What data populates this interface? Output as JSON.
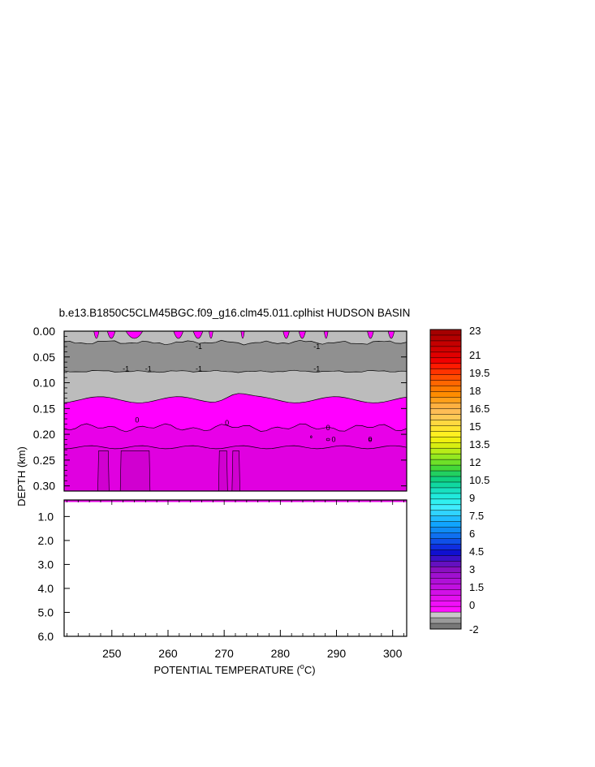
{
  "chart_data": {
    "type": "heatmap",
    "title": "b.e13.B1850C5CLM45BGC.f09_g16.clm45.011.cplhist HUDSON BASIN",
    "ylabel": "DEPTH (km)",
    "xlabel_main": "POTENTIAL TEMPERATURE (",
    "xlabel_sup": "o",
    "xlabel_unit": "C)",
    "x_ticks": [
      "250",
      "260",
      "270",
      "280",
      "290",
      "300"
    ],
    "x_tick_values": [
      250,
      260,
      270,
      280,
      290,
      300
    ],
    "xlim": [
      241.5,
      302.5
    ],
    "upper_panel": {
      "ylim": [
        0.0,
        0.31
      ],
      "y_ticks": [
        "0.00",
        "0.05",
        "0.10",
        "0.15",
        "0.20",
        "0.25",
        "0.30"
      ],
      "y_tick_values": [
        0.0,
        0.05,
        0.1,
        0.15,
        0.2,
        0.25,
        0.3
      ],
      "contour_labels": [
        {
          "text": "-1",
          "x": 256.5,
          "y": 0.073
        },
        {
          "text": "-1",
          "x": 252.5,
          "y": 0.073
        },
        {
          "text": "-1",
          "x": 265.5,
          "y": 0.073
        },
        {
          "text": "-1",
          "x": 286.5,
          "y": 0.073
        },
        {
          "text": "-1",
          "x": 265.5,
          "y": 0.03
        },
        {
          "text": "-1",
          "x": 286.5,
          "y": 0.03
        },
        {
          "text": "0",
          "x": 254.5,
          "y": 0.172
        },
        {
          "text": "0",
          "x": 270.5,
          "y": 0.178
        },
        {
          "text": "0",
          "x": 288.5,
          "y": 0.187
        },
        {
          "text": "0",
          "x": 289.5,
          "y": 0.21
        },
        {
          "text": "0",
          "x": 296.0,
          "y": 0.21
        }
      ]
    },
    "lower_panel": {
      "ylim": [
        0.31,
        6.0
      ],
      "y_ticks": [
        "1.0",
        "2.0",
        "3.0",
        "4.0",
        "5.0",
        "6.0"
      ],
      "y_tick_values": [
        1.0,
        2.0,
        3.0,
        4.0,
        5.0,
        6.0
      ]
    },
    "colorbar": {
      "labels": [
        "23",
        "21",
        "19.5",
        "18",
        "16.5",
        "15",
        "13.5",
        "12",
        "10.5",
        "9",
        "7.5",
        "6",
        "4.5",
        "3",
        "1.5",
        "0",
        "-2"
      ],
      "colors": [
        "#a50000",
        "#b40000",
        "#c40000",
        "#d20000",
        "#e00000",
        "#f00000",
        "#ff1a00",
        "#ff3300",
        "#ff4d00",
        "#ff6600",
        "#ff7a00",
        "#ff8c00",
        "#ff9f1a",
        "#ffb040",
        "#ffbd55",
        "#ffc955",
        "#ffd840",
        "#ffe430",
        "#fff020",
        "#f0f010",
        "#d8ee10",
        "#b8ec18",
        "#94e820",
        "#6ee028",
        "#44d838",
        "#22d060",
        "#10d080",
        "#10d8a0",
        "#18e0c0",
        "#20eadc",
        "#30f0f0",
        "#40ecff",
        "#30d4ff",
        "#20bcff",
        "#10a4ff",
        "#0f8cf5",
        "#0f70f0",
        "#0f50e8",
        "#0f2ee0",
        "#1010d0",
        "#3a10c8",
        "#6410c0",
        "#8a10c0",
        "#a010d0",
        "#b010d8",
        "#c010e0",
        "#d210e8",
        "#e410f0",
        "#f010f8",
        "#ff10ff",
        "#c8c8c8",
        "#9a9a9a",
        "#787878"
      ]
    },
    "zones": [
      {
        "name": "grey-mid",
        "color": "#909090",
        "range": "-1 to -0.5"
      },
      {
        "name": "grey-light",
        "color": "#bcbcbc",
        "range": "-0.5 to 0"
      },
      {
        "name": "magenta-light",
        "color": "#ff00ff",
        "range": "0 to 0.25"
      },
      {
        "name": "magenta-mid",
        "color": "#e800e8",
        "range": "0.25 to 0.5"
      },
      {
        "name": "magenta-dark",
        "color": "#d400d4",
        "range": "0.5 to 0.75"
      }
    ]
  }
}
